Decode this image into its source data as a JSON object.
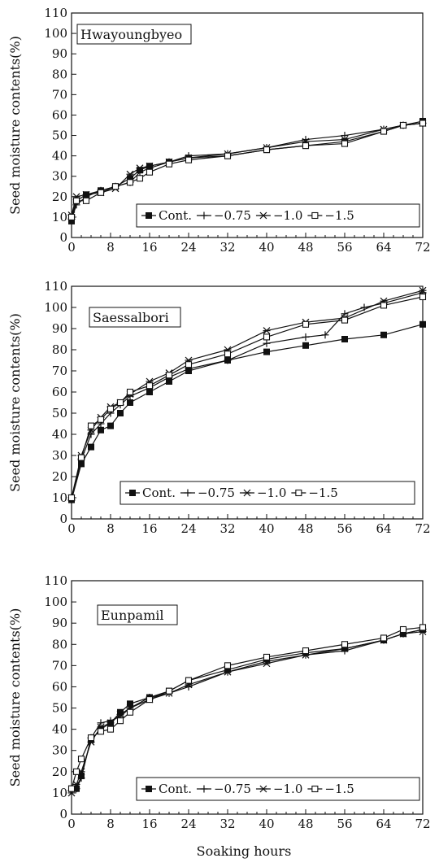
{
  "figure": {
    "xlabel": "Soaking hours"
  },
  "chart_data": [
    {
      "type": "line",
      "title": "",
      "panel_label": "Hwayoungbyeo",
      "ylabel": "Seed moisture contents(%)",
      "xlabel": "",
      "xlim": [
        0,
        72
      ],
      "ylim": [
        0,
        110
      ],
      "x_ticks": [
        0,
        8,
        16,
        24,
        32,
        40,
        48,
        56,
        64,
        72
      ],
      "y_ticks": [
        0,
        10,
        20,
        30,
        40,
        50,
        60,
        70,
        80,
        90,
        100,
        110
      ],
      "legend_position": "bottom-right",
      "series": [
        {
          "name": "Cont.",
          "marker": "filled-square",
          "x": [
            0,
            1,
            3,
            6,
            9,
            12,
            14,
            16,
            20,
            24,
            32,
            40,
            48,
            56,
            64,
            68,
            72
          ],
          "y": [
            8,
            18,
            21,
            23,
            25,
            29,
            33,
            35,
            37,
            39,
            40,
            43,
            45,
            47,
            52,
            55,
            57
          ]
        },
        {
          "name": "−0.75",
          "marker": "plus",
          "x": [
            0,
            1,
            3,
            6,
            9,
            12,
            14,
            16,
            20,
            24,
            32,
            40,
            48,
            56,
            64,
            68,
            72
          ],
          "y": [
            9,
            16,
            20,
            23,
            25,
            27,
            32,
            34,
            37,
            40,
            41,
            44,
            48,
            50,
            53,
            55,
            56
          ]
        },
        {
          "name": "−1.0",
          "marker": "star",
          "x": [
            0,
            1,
            3,
            6,
            9,
            12,
            14,
            16,
            20,
            24,
            32,
            40,
            48,
            56,
            64,
            68,
            72
          ],
          "y": [
            11,
            20,
            21,
            22,
            24,
            31,
            34,
            35,
            37,
            39,
            41,
            44,
            47,
            48,
            53,
            55,
            56
          ]
        },
        {
          "name": "−1.5",
          "marker": "open-square",
          "x": [
            0,
            1,
            3,
            6,
            9,
            12,
            14,
            16,
            20,
            24,
            32,
            40,
            48,
            56,
            64,
            68,
            72
          ],
          "y": [
            10,
            18,
            18,
            22,
            25,
            27,
            29,
            32,
            36,
            38,
            40,
            43,
            45,
            46,
            52,
            55,
            56
          ]
        }
      ]
    },
    {
      "type": "line",
      "title": "",
      "panel_label": "Saessalbori",
      "ylabel": "Seed moisture contents(%)",
      "xlabel": "",
      "xlim": [
        0,
        72
      ],
      "ylim": [
        0,
        110
      ],
      "x_ticks": [
        0,
        8,
        16,
        24,
        32,
        40,
        48,
        56,
        64,
        72
      ],
      "y_ticks": [
        0,
        10,
        20,
        30,
        40,
        50,
        60,
        70,
        80,
        90,
        100,
        110
      ],
      "legend_position": "bottom-right",
      "series": [
        {
          "name": "Cont.",
          "marker": "filled-square",
          "x": [
            0,
            2,
            4,
            6,
            8,
            10,
            12,
            16,
            20,
            24,
            32,
            40,
            48,
            56,
            64,
            72
          ],
          "y": [
            9,
            26,
            34,
            42,
            44,
            50,
            55,
            60,
            65,
            70,
            75,
            79,
            82,
            85,
            87,
            92
          ]
        },
        {
          "name": "−0.75",
          "marker": "plus",
          "x": [
            0,
            2,
            4,
            6,
            8,
            10,
            12,
            16,
            20,
            24,
            32,
            40,
            48,
            52,
            56,
            60,
            64,
            72
          ],
          "y": [
            9,
            28,
            40,
            45,
            50,
            54,
            58,
            62,
            67,
            71,
            75,
            83,
            86,
            87,
            97,
            100,
            102,
            107
          ]
        },
        {
          "name": "−1.0",
          "marker": "star",
          "x": [
            0,
            2,
            4,
            6,
            8,
            10,
            12,
            16,
            20,
            24,
            32,
            40,
            48,
            56,
            64,
            72
          ],
          "y": [
            10,
            30,
            42,
            48,
            53,
            55,
            59,
            65,
            69,
            75,
            80,
            89,
            93,
            95,
            103,
            108
          ]
        },
        {
          "name": "−1.5",
          "marker": "open-square",
          "x": [
            0,
            2,
            4,
            6,
            8,
            10,
            12,
            16,
            20,
            24,
            32,
            40,
            48,
            56,
            64,
            72
          ],
          "y": [
            10,
            29,
            44,
            47,
            52,
            55,
            60,
            63,
            68,
            73,
            78,
            86,
            92,
            94,
            101,
            105
          ]
        }
      ]
    },
    {
      "type": "line",
      "title": "",
      "panel_label": "Eunpamil",
      "ylabel": "Seed moisture contents(%)",
      "xlabel": "",
      "xlim": [
        0,
        72
      ],
      "ylim": [
        0,
        110
      ],
      "x_ticks": [
        0,
        8,
        16,
        24,
        32,
        40,
        48,
        56,
        64,
        72
      ],
      "y_ticks": [
        0,
        10,
        20,
        30,
        40,
        50,
        60,
        70,
        80,
        90,
        100,
        110
      ],
      "legend_position": "bottom-right",
      "series": [
        {
          "name": "Cont.",
          "marker": "filled-square",
          "x": [
            0,
            1,
            2,
            4,
            6,
            8,
            10,
            12,
            16,
            20,
            24,
            32,
            40,
            48,
            56,
            64,
            68,
            72
          ],
          "y": [
            12,
            12,
            18,
            35,
            40,
            43,
            48,
            52,
            55,
            58,
            63,
            68,
            73,
            76,
            78,
            82,
            85,
            87
          ]
        },
        {
          "name": "−0.75",
          "marker": "plus",
          "x": [
            0,
            1,
            2,
            4,
            6,
            8,
            10,
            12,
            16,
            20,
            24,
            32,
            40,
            48,
            56,
            64,
            68,
            72
          ],
          "y": [
            11,
            12,
            17,
            36,
            43,
            44,
            46,
            50,
            55,
            57,
            60,
            67,
            72,
            75,
            77,
            82,
            85,
            87
          ]
        },
        {
          "name": "−1.0",
          "marker": "star",
          "x": [
            0,
            1,
            2,
            4,
            6,
            8,
            10,
            12,
            16,
            20,
            24,
            32,
            40,
            48,
            56,
            64,
            68,
            72
          ],
          "y": [
            10,
            14,
            20,
            34,
            41,
            43,
            47,
            50,
            54,
            57,
            61,
            67,
            71,
            75,
            78,
            82,
            85,
            86
          ]
        },
        {
          "name": "−1.5",
          "marker": "open-square",
          "x": [
            0,
            1,
            2,
            4,
            6,
            8,
            10,
            12,
            16,
            20,
            24,
            32,
            40,
            48,
            56,
            64,
            68,
            72
          ],
          "y": [
            12,
            20,
            26,
            36,
            39,
            40,
            44,
            48,
            54,
            58,
            63,
            70,
            74,
            77,
            80,
            83,
            87,
            88
          ]
        }
      ]
    }
  ]
}
